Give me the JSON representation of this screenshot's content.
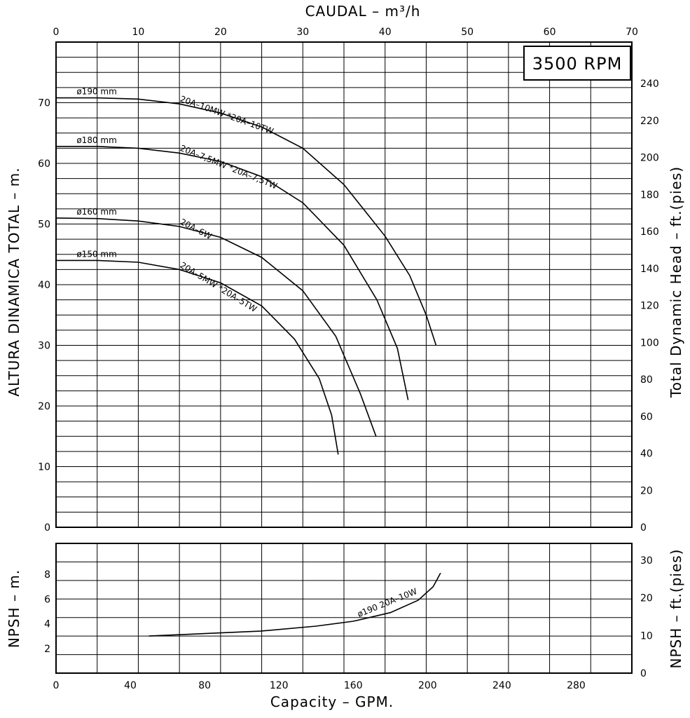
{
  "chart_data": [
    {
      "type": "line",
      "title": "",
      "badge": "3500 RPM",
      "xlabel_top": "CAUDAL  – m³/h",
      "ylabel_left": "ALTURA DINAMICA TOTAL – m.",
      "ylabel_right": "Total Dynamic Head – ft.(pies)",
      "xlim": [
        0,
        70
      ],
      "ylim": [
        0,
        80
      ],
      "x_ticks": [
        "0",
        "10",
        "20",
        "30",
        "40",
        "50",
        "60",
        "70"
      ],
      "y_ticks": [
        "0",
        "10",
        "20",
        "30",
        "40",
        "50",
        "60",
        "70"
      ],
      "y2_ticks": [
        "0",
        "20",
        "40",
        "60",
        "80",
        "100",
        "120",
        "140",
        "160",
        "180",
        "200",
        "220",
        "240"
      ],
      "grid": true,
      "series": [
        {
          "name": "ø190 mm",
          "model": "20A–10MW *20A–10TW",
          "points": [
            [
              0,
              70.8
            ],
            [
              5,
              70.8
            ],
            [
              10,
              70.6
            ],
            [
              15,
              69.8
            ],
            [
              20,
              68.3
            ],
            [
              25,
              66.0
            ],
            [
              30,
              62.5
            ],
            [
              35,
              56.5
            ],
            [
              40,
              48.0
            ],
            [
              43,
              41.5
            ],
            [
              45,
              35.0
            ],
            [
              46.2,
              30.0
            ]
          ]
        },
        {
          "name": "ø180 mm",
          "model": "20A–7,5MW *20A–7,5TW",
          "points": [
            [
              0,
              62.8
            ],
            [
              5,
              62.8
            ],
            [
              10,
              62.5
            ],
            [
              15,
              61.7
            ],
            [
              20,
              60.3
            ],
            [
              25,
              57.8
            ],
            [
              30,
              53.5
            ],
            [
              35,
              46.5
            ],
            [
              39,
              37.5
            ],
            [
              41.5,
              29.5
            ],
            [
              42.8,
              21.0
            ]
          ]
        },
        {
          "name": "ø160 mm",
          "model": "20A–6W",
          "points": [
            [
              0,
              51.0
            ],
            [
              5,
              50.9
            ],
            [
              10,
              50.5
            ],
            [
              15,
              49.6
            ],
            [
              20,
              47.8
            ],
            [
              25,
              44.5
            ],
            [
              30,
              39.0
            ],
            [
              34,
              31.5
            ],
            [
              37,
              22.0
            ],
            [
              38.9,
              15.0
            ]
          ]
        },
        {
          "name": "ø150 mm",
          "model": "20A–5MW *20A–5TW",
          "points": [
            [
              0,
              44.0
            ],
            [
              5,
              44.0
            ],
            [
              10,
              43.7
            ],
            [
              15,
              42.5
            ],
            [
              20,
              40.3
            ],
            [
              25,
              36.5
            ],
            [
              29,
              31.0
            ],
            [
              32,
              24.5
            ],
            [
              33.5,
              18.5
            ],
            [
              34.3,
              12.0
            ]
          ]
        }
      ]
    },
    {
      "type": "line",
      "title": "",
      "xlabel": "Capacity – GPM.",
      "ylabel_left": "NPSH – m.",
      "ylabel_right": "NPSH – ft.(pies)",
      "xlim": [
        0,
        310
      ],
      "ylim": [
        0,
        10.5
      ],
      "x_ticks": [
        "0",
        "40",
        "80",
        "120",
        "160",
        "200",
        "240",
        "280"
      ],
      "y_ticks": [
        "2",
        "4",
        "6",
        "8"
      ],
      "y2_ticks": [
        "0",
        "10",
        "20",
        "30"
      ],
      "grid": true,
      "series": [
        {
          "name": "ø190 20A–10W",
          "points": [
            [
              50,
              3.0
            ],
            [
              80,
              3.2
            ],
            [
              110,
              3.4
            ],
            [
              140,
              3.8
            ],
            [
              160,
              4.2
            ],
            [
              180,
              4.9
            ],
            [
              195,
              5.9
            ],
            [
              203,
              7.0
            ],
            [
              207,
              8.1
            ]
          ]
        }
      ]
    }
  ]
}
